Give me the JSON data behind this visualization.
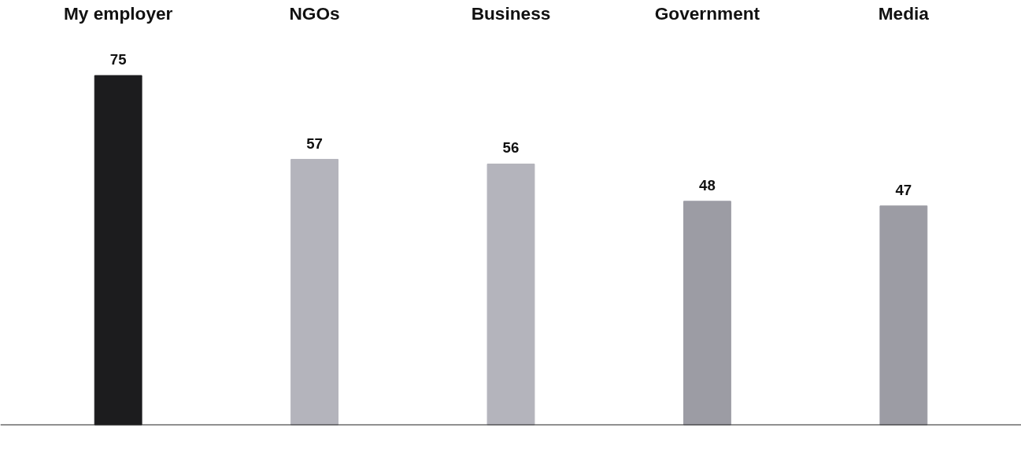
{
  "chart_data": {
    "type": "bar",
    "categories": [
      "My employer",
      "NGOs",
      "Business",
      "Government",
      "Media"
    ],
    "values": [
      75,
      57,
      56,
      48,
      47
    ],
    "colors": [
      "#1c1c1e",
      "#b4b4bc",
      "#b4b4bc",
      "#9c9ca4",
      "#9c9ca4"
    ],
    "data_labels": true,
    "tick_labels": "x",
    "grid": false
  }
}
